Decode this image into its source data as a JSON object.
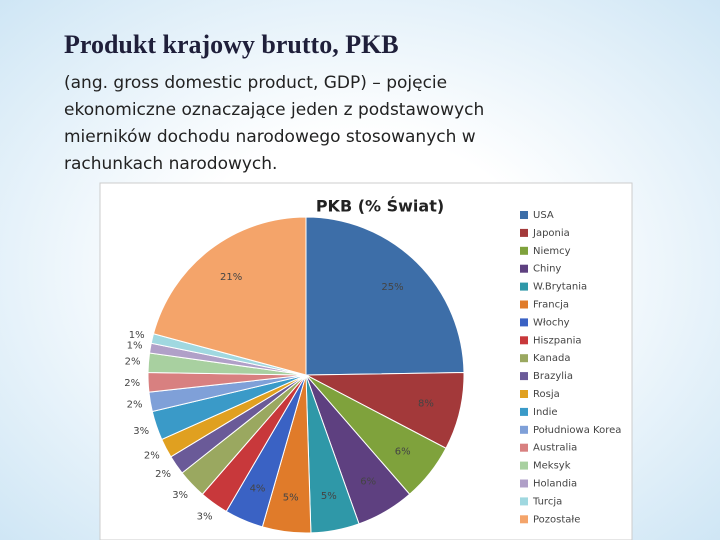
{
  "slide": {
    "title": "Produkt krajowy brutto, PKB",
    "text": [
      "(ang. gross domestic product, GDP) – pojęcie",
      "ekonomiczne oznaczające jeden z podstawowych",
      "mierników dochodu narodowego stosowanych w",
      "rachunkach narodowych."
    ]
  },
  "chart_data": {
    "type": "pie",
    "title": "PKB (% Świat)",
    "legend": "right",
    "categories": [
      "USA",
      "Japonia",
      "Niemcy",
      "Chiny",
      "W.Brytania",
      "Francja",
      "Włochy",
      "Hiszpania",
      "Kanada",
      "Brazylia",
      "Rosja",
      "Indie",
      "Południowa Korea",
      "Australia",
      "Meksyk",
      "Holandia",
      "Turcja",
      "Pozostałe"
    ],
    "values": [
      25,
      8,
      6,
      6,
      5,
      5,
      4,
      3,
      3,
      2,
      2,
      3,
      2,
      2,
      2,
      1,
      1,
      21
    ],
    "value_labels": [
      "25%",
      "8%",
      "6%",
      "6%",
      "5%",
      "5%",
      "4%",
      "3%",
      "3%",
      "2%",
      "2%",
      "3%",
      "2%",
      "2%",
      "2%",
      "1%",
      "1%",
      "21%"
    ],
    "colors": [
      "#3d6ea8",
      "#a3393a",
      "#7fa23c",
      "#5e4080",
      "#2f98a8",
      "#e07b2a",
      "#3a62c4",
      "#c8383b",
      "#9aa860",
      "#6a5a98",
      "#e0a020",
      "#3a9ac8",
      "#7fa0d8",
      "#d88080",
      "#a8d0a0",
      "#b0a0c8",
      "#a0d8e0",
      "#f4a46a"
    ]
  }
}
